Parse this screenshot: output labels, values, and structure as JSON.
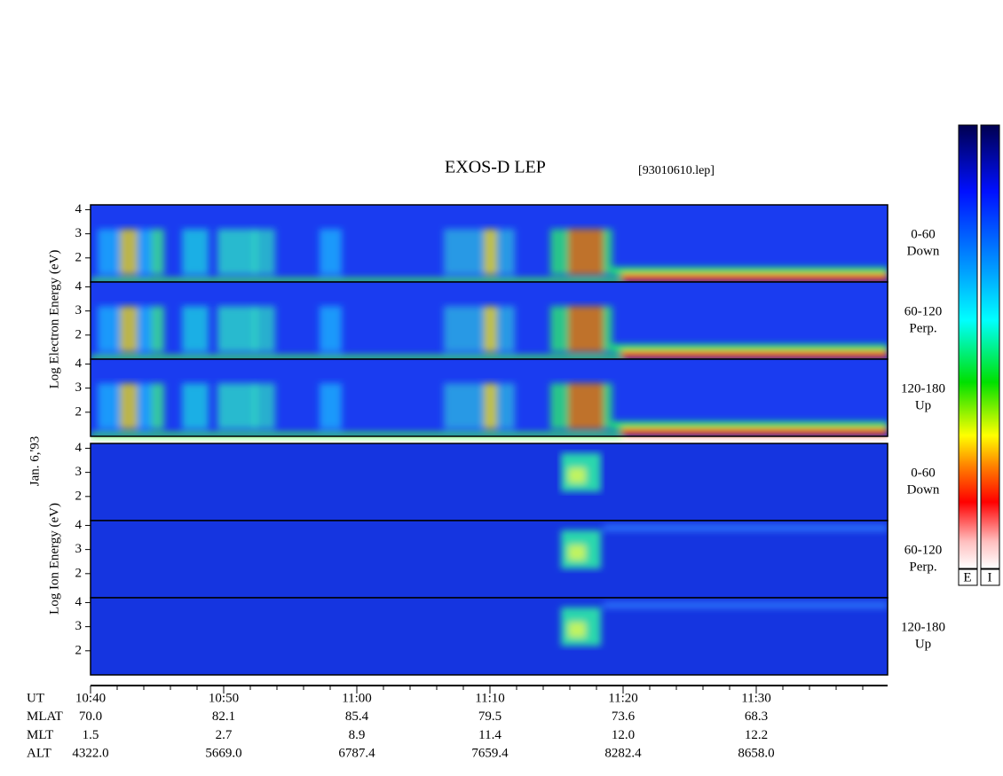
{
  "title": "EXOS-D LEP",
  "file": "[93010610.lep]",
  "date": "Jan. 6,'93",
  "electron_axis_label": "Log  Electron  Energy (eV)",
  "ion_axis_label": "Log  Ion  Energy (eV)",
  "ylim": [
    1,
    4.2
  ],
  "yticks": [
    2,
    3,
    4
  ],
  "panels": [
    {
      "species": "electron",
      "angle": "0-60",
      "direction": "Down"
    },
    {
      "species": "electron",
      "angle": "60-120",
      "direction": "Perp."
    },
    {
      "species": "electron",
      "angle": "120-180",
      "direction": "Up"
    },
    {
      "species": "ion",
      "angle": "0-60",
      "direction": "Down"
    },
    {
      "species": "ion",
      "angle": "60-120",
      "direction": "Perp."
    },
    {
      "species": "ion",
      "angle": "120-180",
      "direction": "Up"
    }
  ],
  "colorbar_labels": [
    "E",
    "I"
  ],
  "time_table": [
    {
      "label": "UT",
      "values": [
        "10:40",
        "10:50",
        "11:00",
        "11:10",
        "11:20",
        "11:30"
      ]
    },
    {
      "label": "MLAT",
      "values": [
        "70.0",
        "82.1",
        "85.4",
        "79.5",
        "73.6",
        "68.3"
      ]
    },
    {
      "label": "MLT",
      "values": [
        "1.5",
        "2.7",
        "8.9",
        "11.4",
        "12.0",
        "12.2"
      ]
    },
    {
      "label": "ALT",
      "values": [
        "4322.0",
        "5669.0",
        "6787.4",
        "7659.4",
        "8282.4",
        "8658.0"
      ]
    }
  ]
}
